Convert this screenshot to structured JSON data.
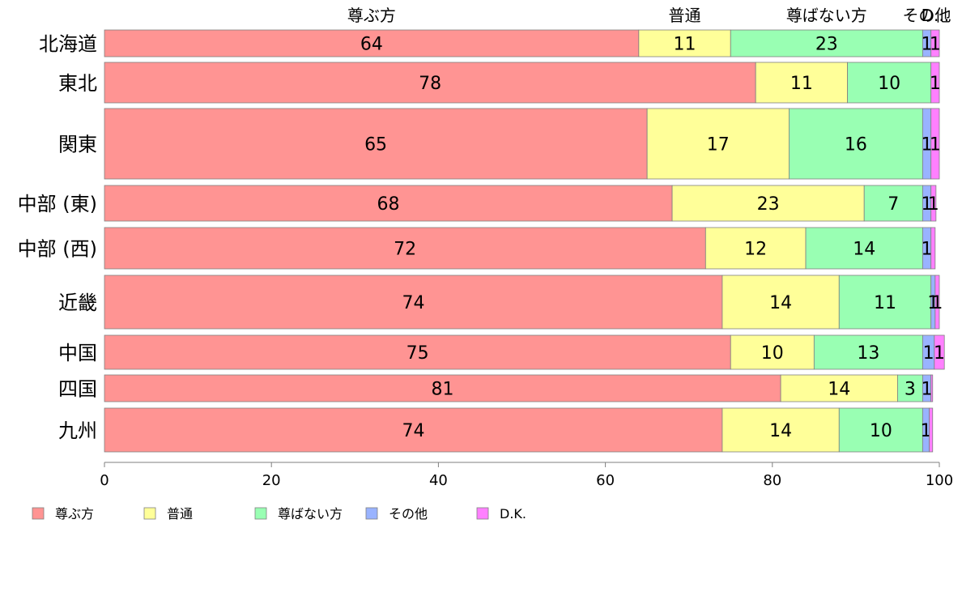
{
  "chart_data": {
    "type": "bar",
    "orientation": "horizontal",
    "stacked": true,
    "categories": [
      "北海道",
      "東北",
      "関東",
      "中部 (東)",
      "中部 (西)",
      "近畿",
      "中国",
      "四国",
      "九州"
    ],
    "series": [
      {
        "name": "尊ぶ方",
        "color": "#FF9493",
        "values": [
          64,
          78,
          65,
          68,
          72,
          74,
          75,
          81,
          74
        ]
      },
      {
        "name": "普通",
        "color": "#FFFF99",
        "values": [
          11,
          11,
          17,
          23,
          12,
          14,
          10,
          14,
          14
        ]
      },
      {
        "name": "尊ばない方",
        "color": "#99FFB3",
        "values": [
          23,
          10,
          16,
          7,
          14,
          11,
          13,
          3,
          10
        ]
      },
      {
        "name": "その他",
        "color": "#99B3FF",
        "values": [
          1,
          0,
          1,
          1,
          1,
          0.5,
          1.4,
          1,
          0.8
        ]
      },
      {
        "name": "D.K.",
        "color": "#FF80FF",
        "values": [
          1,
          1,
          1,
          0.6,
          0.5,
          0.5,
          1.2,
          0.2,
          0.4
        ]
      }
    ],
    "value_labels": [
      [
        "64",
        "11",
        "23",
        "1",
        "1"
      ],
      [
        "78",
        "11",
        "10",
        "",
        "1"
      ],
      [
        "65",
        "17",
        "16",
        "1",
        "1"
      ],
      [
        "68",
        "23",
        "7",
        "1",
        "1"
      ],
      [
        "72",
        "12",
        "14",
        "1",
        ""
      ],
      [
        "74",
        "14",
        "11",
        "1",
        "1"
      ],
      [
        "75",
        "10",
        "13",
        "1",
        "1"
      ],
      [
        "81",
        "14",
        "3",
        "1",
        ""
      ],
      [
        "74",
        "14",
        "10",
        "1",
        ""
      ]
    ],
    "top_labels": [
      "尊ぶ方",
      "普通",
      "尊ばない方",
      "その他",
      "D..."
    ],
    "xlim": [
      0,
      100
    ],
    "xticks": [
      0,
      20,
      40,
      60,
      80,
      100
    ],
    "legend": {
      "position": "bottom-left",
      "entries": [
        "尊ぶ方",
        "普通",
        "尊ばない方",
        "その他",
        "D.K."
      ]
    },
    "grid": false
  }
}
